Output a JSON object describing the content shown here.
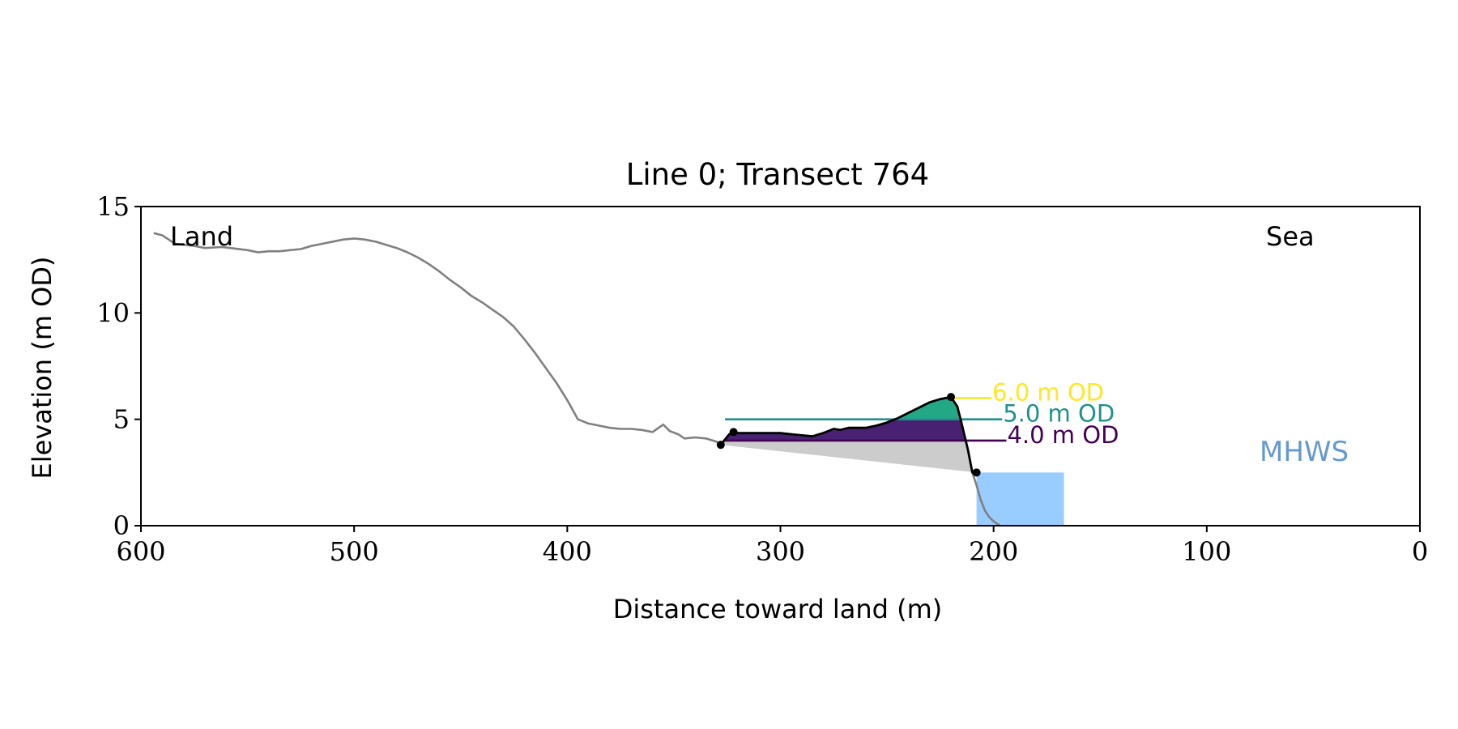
{
  "chart_data": {
    "type": "line",
    "title": "Line 0; Transect 764",
    "xlabel": "Distance toward land (m)",
    "ylabel": "Elevation (m OD)",
    "xlim": [
      600,
      0
    ],
    "ylim": [
      0,
      15
    ],
    "x_ticks": [
      600,
      500,
      400,
      300,
      200,
      100,
      0
    ],
    "y_ticks": [
      0,
      5,
      10,
      15
    ],
    "grid": false,
    "annotations": {
      "land": "Land",
      "sea": "Sea",
      "mhws": "MHWS"
    },
    "colors": {
      "profile": "#808080",
      "selected_profile": "#000000",
      "wedge": "#cccccc",
      "mhws_fill": "#99ccff",
      "mhws_text": "#6699cc",
      "level_4": "#440154",
      "level_5": "#21918c",
      "level_6": "#fde725",
      "fill_4": "#482173",
      "fill_5": "#22a884"
    },
    "profile": {
      "x": [
        594,
        590,
        587,
        584,
        575,
        570,
        562,
        558,
        550,
        545,
        540,
        535,
        530,
        525,
        520,
        515,
        510,
        505,
        500,
        495,
        490,
        485,
        480,
        475,
        470,
        465,
        460,
        455,
        450,
        445,
        440,
        435,
        430,
        425,
        420,
        415,
        410,
        405,
        400,
        395,
        390,
        385,
        380,
        375,
        370,
        365,
        360,
        355,
        352,
        348,
        345,
        340,
        335,
        330,
        328,
        324,
        322,
        320,
        315,
        310,
        305,
        300,
        295,
        290,
        285,
        280,
        275,
        272,
        268,
        265,
        260,
        255,
        250,
        245,
        240,
        235,
        230,
        225,
        220,
        217,
        215,
        212,
        210,
        208,
        206,
        204,
        202,
        200,
        197
      ],
      "y": [
        13.75,
        13.65,
        13.45,
        13.25,
        13.15,
        13.05,
        13.1,
        13.05,
        12.95,
        12.85,
        12.9,
        12.9,
        12.95,
        13.0,
        13.15,
        13.25,
        13.35,
        13.45,
        13.5,
        13.45,
        13.35,
        13.2,
        13.05,
        12.85,
        12.6,
        12.3,
        11.95,
        11.55,
        11.2,
        10.8,
        10.5,
        10.15,
        9.8,
        9.35,
        8.75,
        8.1,
        7.4,
        6.7,
        5.9,
        5.0,
        4.8,
        4.7,
        4.6,
        4.55,
        4.55,
        4.5,
        4.4,
        4.75,
        4.45,
        4.3,
        4.1,
        4.15,
        4.1,
        3.95,
        3.8,
        4.3,
        4.4,
        4.35,
        4.35,
        4.35,
        4.35,
        4.35,
        4.3,
        4.25,
        4.2,
        4.35,
        4.55,
        4.5,
        4.6,
        4.6,
        4.6,
        4.7,
        4.85,
        5.05,
        5.3,
        5.55,
        5.8,
        5.95,
        6.05,
        5.6,
        4.8,
        3.55,
        2.5,
        1.9,
        1.2,
        0.7,
        0.4,
        0.2,
        0.0
      ]
    },
    "selected_points": [
      [
        328,
        3.8
      ],
      [
        322,
        4.4
      ],
      [
        220,
        6.05
      ],
      [
        208,
        2.5
      ]
    ],
    "mhws": {
      "elevation": 2.5,
      "x_start": 208,
      "x_end": 167
    },
    "levels": [
      {
        "elevation": 4.0,
        "label": "4.0 m OD",
        "x_start": 326,
        "x_end": 194
      },
      {
        "elevation": 5.0,
        "label": "5.0 m OD",
        "x_start": 326,
        "x_end": 196
      },
      {
        "elevation": 6.0,
        "label": "6.0 m OD",
        "x_start": 218,
        "x_end": 201
      }
    ]
  }
}
